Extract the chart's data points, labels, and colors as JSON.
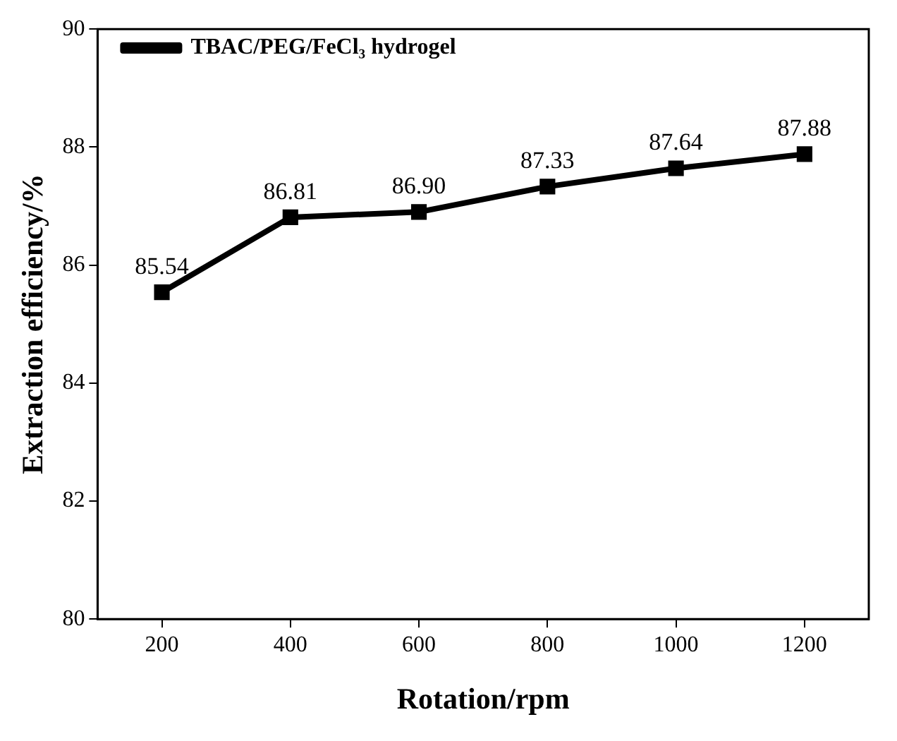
{
  "chart_data": {
    "type": "line",
    "xlabel": "Rotation/rpm",
    "ylabel": "Extraction efficiency/%",
    "x": [
      200,
      400,
      600,
      800,
      1000,
      1200
    ],
    "series": [
      {
        "name": "TBAC/PEG/FeCl₃ hydrogel",
        "color": "#000000",
        "values": [
          85.54,
          86.81,
          86.9,
          87.33,
          87.64,
          87.88
        ],
        "value_labels": [
          "85.54",
          "86.81",
          "86.90",
          "87.33",
          "87.64",
          "87.88"
        ]
      }
    ],
    "xlim": [
      100,
      1300
    ],
    "xticks": [
      200,
      400,
      600,
      800,
      1000,
      1200
    ],
    "ylim": [
      80,
      90
    ],
    "yticks": [
      80,
      82,
      84,
      86,
      88,
      90
    ],
    "grid": false,
    "legend": "top left",
    "marker": "square",
    "line_style": "solid"
  }
}
